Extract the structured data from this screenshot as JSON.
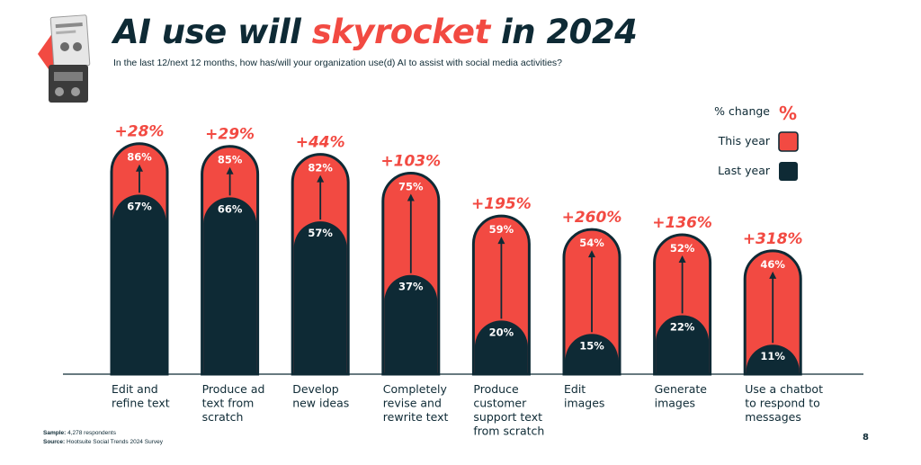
{
  "header": {
    "title_before": "AI use will ",
    "title_highlight": "skyrocket",
    "title_after": " in 2024",
    "subtitle": "In the last 12/next 12 months, how has/will your organization use(d) AI to assist with social media activities?"
  },
  "legend": {
    "change_label": "% change",
    "change_symbol": "%",
    "this_year_label": "This year",
    "last_year_label": "Last year"
  },
  "colors": {
    "this_year": "#f24a42",
    "last_year": "#0e2a35",
    "accent": "#f24a42"
  },
  "chart_data": {
    "type": "bar",
    "categories": [
      "Edit and refine text",
      "Produce ad text from scratch",
      "Develop new ideas",
      "Completely revise and rewrite text",
      "Produce customer support text from scratch",
      "Edit images",
      "Generate images",
      "Use a chatbot to respond to messages"
    ],
    "category_lines": [
      [
        "Edit and",
        "refine text"
      ],
      [
        "Produce ad",
        "text from",
        "scratch"
      ],
      [
        "Develop",
        "new ideas"
      ],
      [
        "Completely",
        "revise and",
        "rewrite text"
      ],
      [
        "Produce",
        "customer",
        "support text",
        "from scratch"
      ],
      [
        "Edit",
        "images"
      ],
      [
        "Generate",
        "images"
      ],
      [
        "Use a chatbot",
        "to respond to",
        "messages"
      ]
    ],
    "series": [
      {
        "name": "Last year",
        "values": [
          67,
          66,
          57,
          37,
          20,
          15,
          22,
          11
        ]
      },
      {
        "name": "This year",
        "values": [
          86,
          85,
          82,
          75,
          59,
          54,
          52,
          46
        ]
      }
    ],
    "pct_change": [
      "+28%",
      "+29%",
      "+44%",
      "+103%",
      "+195%",
      "+260%",
      "+136%",
      "+318%"
    ],
    "ylim": [
      0,
      100
    ],
    "legend_position": "top-right",
    "grid": false
  },
  "footer": {
    "sample_label": "Sample:",
    "sample_value": " 4,278 respondents",
    "source_label": "Source:",
    "source_value": " Hootsuite Social Trends 2024 Survey",
    "page_number": "8"
  }
}
